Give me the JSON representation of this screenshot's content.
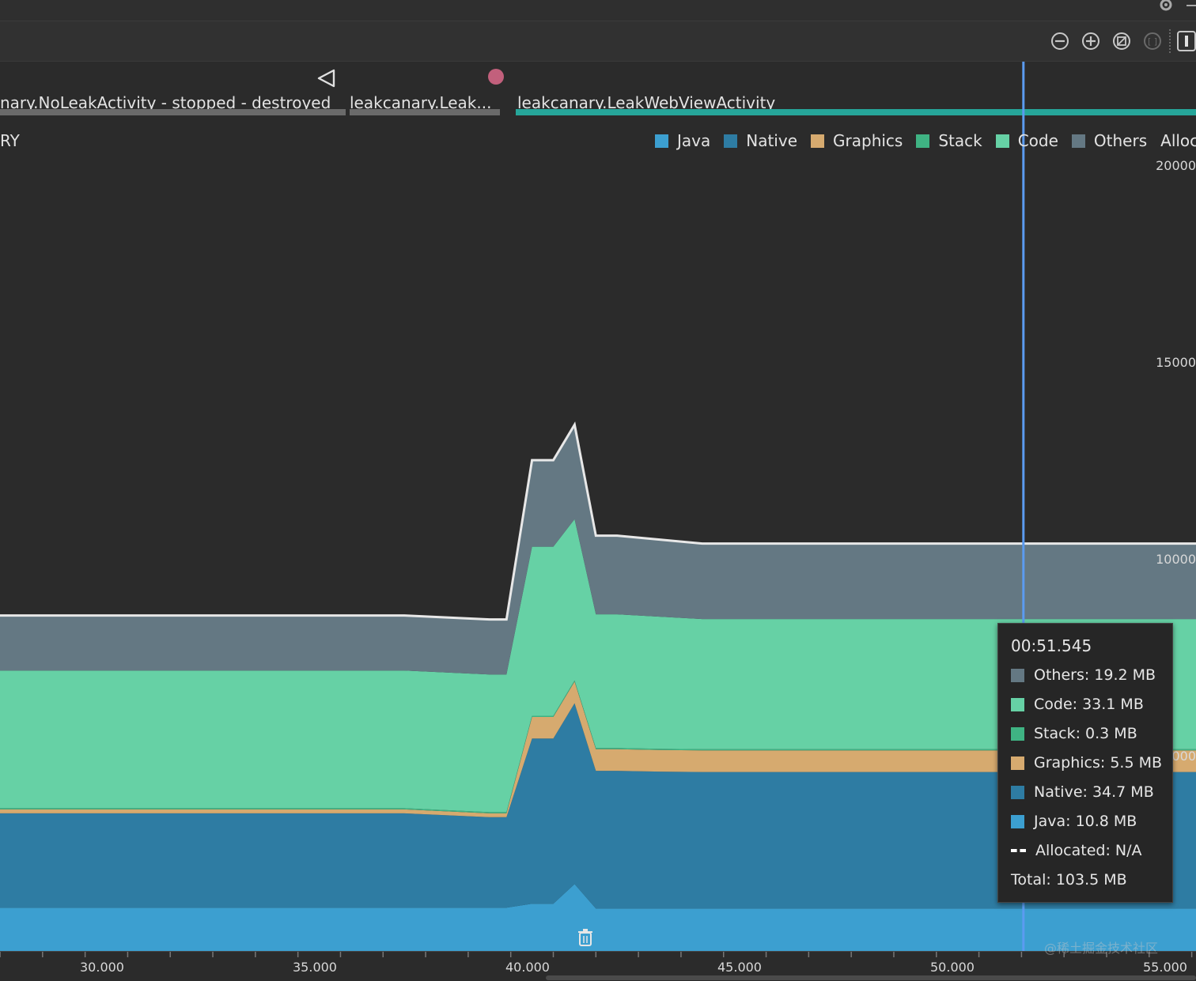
{
  "toolbar": {
    "icons": [
      "zoom-out-icon",
      "zoom-in-icon",
      "reset-zoom-icon",
      "zoom-to-selection-icon",
      "pause-icon"
    ]
  },
  "events": {
    "activities": [
      {
        "label": "nary.NoLeakActivity - stopped - destroyed",
        "color": "#6a6a6a"
      },
      {
        "label": "leakcanary.Leak...",
        "color": "#6a6a6a"
      },
      {
        "label": "leakcanary.LeakWebViewActivity",
        "color": "#26a69a"
      }
    ],
    "back_icon": "back-triangle-icon",
    "touch_dot_color": "#c2607c"
  },
  "memory": {
    "section_label": "RY",
    "legend": [
      {
        "label": "Java",
        "color": "#3c9fd0"
      },
      {
        "label": "Native",
        "color": "#2e7ca3"
      },
      {
        "label": "Graphics",
        "color": "#d6aa6f"
      },
      {
        "label": "Stack",
        "color": "#3fb383"
      },
      {
        "label": "Code",
        "color": "#66d1a5"
      },
      {
        "label": "Others",
        "color": "#647883"
      },
      {
        "label": "Allocate",
        "color": ""
      }
    ],
    "y_ticks": [
      "20000",
      "15000",
      "10000",
      "000"
    ]
  },
  "x_axis": {
    "labels": [
      "30.000",
      "35.000",
      "40.000",
      "45.000",
      "50.000",
      "55.000"
    ]
  },
  "tooltip": {
    "time": "00:51.545",
    "rows": [
      {
        "label": "Others: 19.2 MB",
        "color": "#647883"
      },
      {
        "label": "Code: 33.1 MB",
        "color": "#66d1a5"
      },
      {
        "label": "Stack: 0.3 MB",
        "color": "#3fb383"
      },
      {
        "label": "Graphics: 5.5 MB",
        "color": "#d6aa6f"
      },
      {
        "label": "Native: 34.7 MB",
        "color": "#2e7ca3"
      },
      {
        "label": "Java: 10.8 MB",
        "color": "#3c9fd0"
      },
      {
        "label": "Allocated: N/A",
        "color": "dash"
      },
      {
        "label": "Total: 103.5 MB",
        "color": ""
      }
    ]
  },
  "watermark": "@稀土掘金技术社区",
  "chart_data": {
    "type": "area",
    "stacked": true,
    "xlabel": "",
    "ylabel": "",
    "x_unit": "seconds",
    "x": [
      27.5,
      35.0,
      37.0,
      39.0,
      39.4,
      40.0,
      40.5,
      41.0,
      41.5,
      42.0,
      43.0,
      44.0,
      45.0,
      50.0,
      51.5,
      53.5
    ],
    "series": [
      {
        "name": "Java",
        "values": [
          11,
          11,
          11,
          11,
          11,
          12,
          12,
          17,
          10.8,
          10.8,
          10.8,
          10.8,
          10.8,
          10.8,
          10.8,
          10.8
        ]
      },
      {
        "name": "Native",
        "values": [
          24,
          24,
          24,
          23,
          23,
          42,
          42,
          46,
          35,
          35,
          34.8,
          34.7,
          34.7,
          34.7,
          34.7,
          34.7
        ]
      },
      {
        "name": "Graphics",
        "values": [
          1,
          1,
          1,
          1,
          1,
          5.5,
          5.5,
          5.5,
          5.5,
          5.5,
          5.5,
          5.5,
          5.5,
          5.5,
          5.5,
          5.5
        ]
      },
      {
        "name": "Stack",
        "values": [
          0.3,
          0.3,
          0.3,
          0.3,
          0.3,
          0.3,
          0.3,
          0.3,
          0.3,
          0.3,
          0.3,
          0.3,
          0.3,
          0.3,
          0.3,
          0.3
        ]
      },
      {
        "name": "Code",
        "values": [
          35,
          35,
          35,
          35,
          35,
          43,
          43,
          41,
          34,
          34,
          33.6,
          33.1,
          33.1,
          33.1,
          33.1,
          33.1
        ]
      },
      {
        "name": "Others",
        "values": [
          14,
          14,
          14,
          14,
          14,
          22,
          22,
          24,
          20,
          20,
          19.6,
          19.2,
          19.2,
          19.2,
          19.2,
          19.2
        ]
      }
    ],
    "ylim": [
      0,
      200
    ],
    "cursor_x": 51.545,
    "grid": false
  }
}
